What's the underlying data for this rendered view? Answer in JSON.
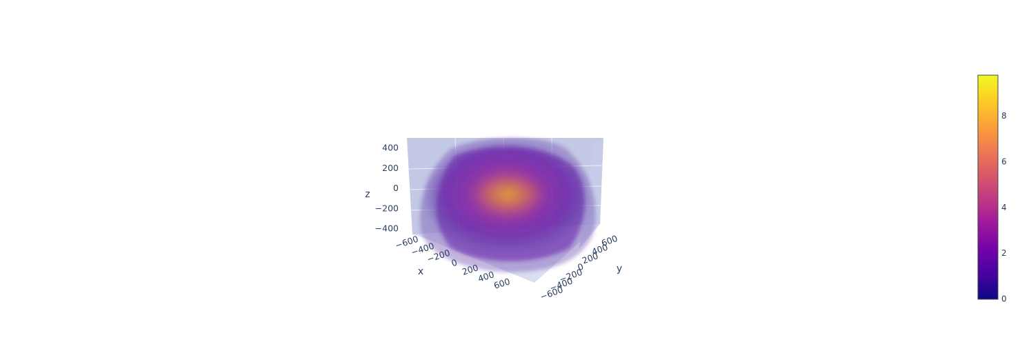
{
  "chart_data": {
    "type": "volume",
    "title": "",
    "xlabel": "x",
    "ylabel": "y",
    "zlabel": "z",
    "x_ticks": [
      "−600",
      "−400",
      "−200",
      "0",
      "200",
      "400",
      "600"
    ],
    "y_ticks": [
      "600",
      "400",
      "200",
      "0",
      "−200",
      "−400",
      "−600"
    ],
    "z_ticks": [
      "400",
      "200",
      "0",
      "−200",
      "−400"
    ],
    "x_range": [
      -700,
      700
    ],
    "y_range": [
      -700,
      700
    ],
    "z_range": [
      -500,
      500
    ],
    "value_range": [
      0,
      9.8
    ],
    "peak_value": 8.5,
    "peak_location": {
      "x": 0,
      "y": 0,
      "z": 0
    },
    "colorbar": {
      "ticks": [
        "8",
        "6",
        "4",
        "2",
        "0"
      ],
      "min": 0,
      "max": 9.8,
      "colorscale": "plasma"
    },
    "scene_bg_color": "#e5ecf6",
    "grid": true
  }
}
